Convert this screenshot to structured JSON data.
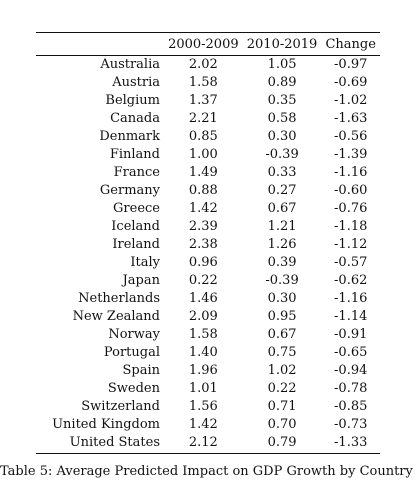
{
  "table": {
    "headers": [
      "",
      "2000-2009",
      "2010-2019",
      "Change"
    ],
    "rows": [
      {
        "country": "Australia",
        "v1": "2.02",
        "v2": "1.05",
        "change": "-0.97"
      },
      {
        "country": "Austria",
        "v1": "1.58",
        "v2": "0.89",
        "change": "-0.69"
      },
      {
        "country": "Belgium",
        "v1": "1.37",
        "v2": "0.35",
        "change": "-1.02"
      },
      {
        "country": "Canada",
        "v1": "2.21",
        "v2": "0.58",
        "change": "-1.63"
      },
      {
        "country": "Denmark",
        "v1": "0.85",
        "v2": "0.30",
        "change": "-0.56"
      },
      {
        "country": "Finland",
        "v1": "1.00",
        "v2": "-0.39",
        "change": "-1.39"
      },
      {
        "country": "France",
        "v1": "1.49",
        "v2": "0.33",
        "change": "-1.16"
      },
      {
        "country": "Germany",
        "v1": "0.88",
        "v2": "0.27",
        "change": "-0.60"
      },
      {
        "country": "Greece",
        "v1": "1.42",
        "v2": "0.67",
        "change": "-0.76"
      },
      {
        "country": "Iceland",
        "v1": "2.39",
        "v2": "1.21",
        "change": "-1.18"
      },
      {
        "country": "Ireland",
        "v1": "2.38",
        "v2": "1.26",
        "change": "-1.12"
      },
      {
        "country": "Italy",
        "v1": "0.96",
        "v2": "0.39",
        "change": "-0.57"
      },
      {
        "country": "Japan",
        "v1": "0.22",
        "v2": "-0.39",
        "change": "-0.62"
      },
      {
        "country": "Netherlands",
        "v1": "1.46",
        "v2": "0.30",
        "change": "-1.16"
      },
      {
        "country": "New Zealand",
        "v1": "2.09",
        "v2": "0.95",
        "change": "-1.14"
      },
      {
        "country": "Norway",
        "v1": "1.58",
        "v2": "0.67",
        "change": "-0.91"
      },
      {
        "country": "Portugal",
        "v1": "1.40",
        "v2": "0.75",
        "change": "-0.65"
      },
      {
        "country": "Spain",
        "v1": "1.96",
        "v2": "1.02",
        "change": "-0.94"
      },
      {
        "country": "Sweden",
        "v1": "1.01",
        "v2": "0.22",
        "change": "-0.78"
      },
      {
        "country": "Switzerland",
        "v1": "1.56",
        "v2": "0.71",
        "change": "-0.85"
      },
      {
        "country": "United Kingdom",
        "v1": "1.42",
        "v2": "0.70",
        "change": "-0.73"
      },
      {
        "country": "United States",
        "v1": "2.12",
        "v2": "0.79",
        "change": "-1.33"
      }
    ]
  },
  "caption": "Table 5: Average Predicted Impact on GDP Growth by Country"
}
